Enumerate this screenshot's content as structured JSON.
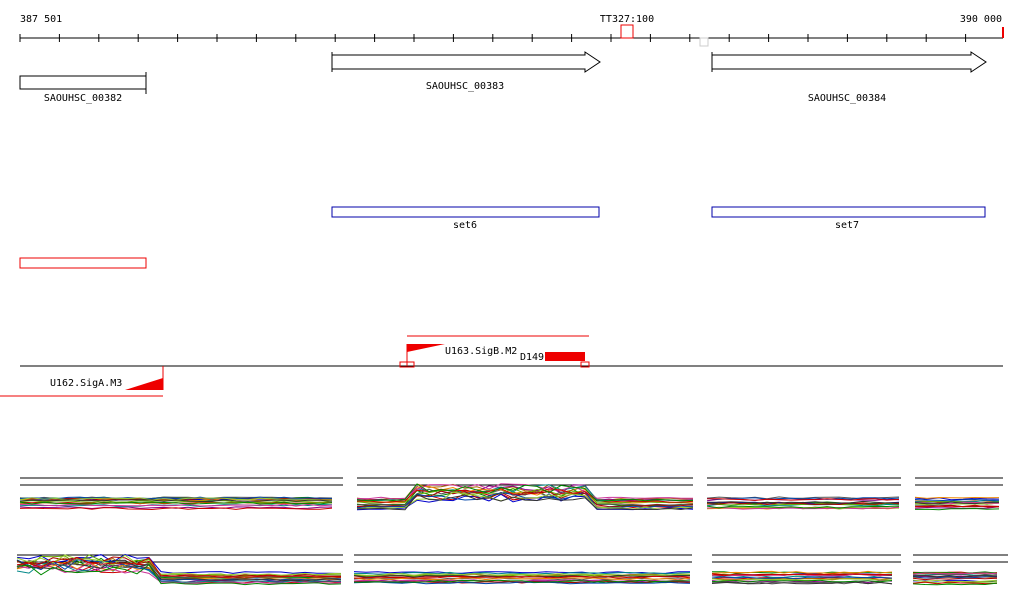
{
  "ruler": {
    "start": "387 501",
    "marker": "TT327:100",
    "end": "390 000"
  },
  "genes": [
    "SAOUHSC_00382",
    "SAOUHSC_00383",
    "SAOUHSC_00384"
  ],
  "sets": [
    "set6",
    "set7"
  ],
  "sites": [
    "U163.SigB.M2",
    "D149",
    "U162.SigA.M3"
  ]
}
